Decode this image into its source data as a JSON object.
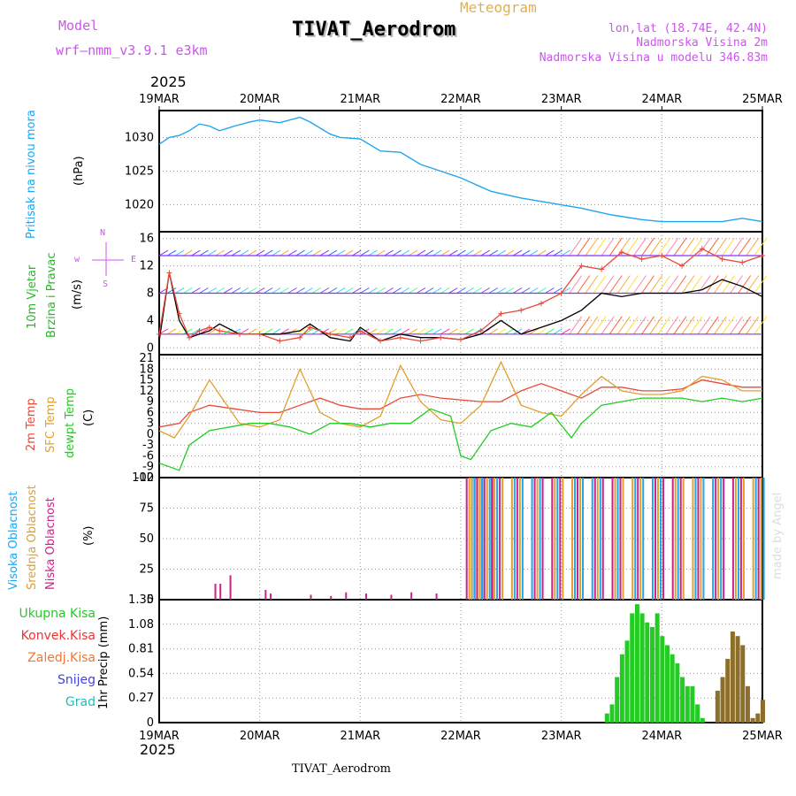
{
  "header": {
    "model_label": "Model",
    "model_value": "wrf—nmm_v3.9.1  e3km",
    "title": "TIVAT_Aerodrom",
    "subtitle": "Meteogram",
    "lonlat": "lon,lat (18.74E, 42.4N)",
    "elev": "Nadmorska Visina 2m",
    "model_elev": "Nadmorska Visina u modelu 346.83m",
    "year_top": "2025",
    "year_bottom": "2025",
    "footer": "TIVAT_Aerodrom",
    "credit": "made by Angel"
  },
  "colors": {
    "pressure": "#1ea6ee",
    "wind_speed_label": "#22bb22",
    "wind_dir_label": "#cc55ee",
    "temp2m": "#e84a3a",
    "sfc": "#e0a030",
    "dew": "#22cc22",
    "high_cloud": "#1ea6ee",
    "mid_cloud": "#e0a030",
    "low_cloud": "#cc2288",
    "total_precip": "#22cc22",
    "conv_precip": "#ee3333",
    "snow_precip": "#e0a030",
    "snow": "#4444dd",
    "grad": "#22bbbb"
  },
  "chart_data": [
    {
      "type": "line",
      "panel": "pressure",
      "x_ticks": [
        "19MAR",
        "20MAR",
        "21MAR",
        "22MAR",
        "23MAR",
        "24MAR",
        "25MAR"
      ],
      "ylabel_color": "Pritisak na nivou mora",
      "ylabel_units": "(hPa)",
      "ylim": [
        1016,
        1034
      ],
      "y_ticks": [
        1020,
        1025,
        1030
      ],
      "series": [
        {
          "name": "Pressure",
          "x": [
            0,
            0.1,
            0.2,
            0.3,
            0.4,
            0.5,
            0.6,
            0.75,
            0.9,
            1.0,
            1.2,
            1.4,
            1.5,
            1.7,
            1.8,
            2.0,
            2.2,
            2.4,
            2.6,
            2.8,
            3.0,
            3.3,
            3.6,
            4.0,
            4.2,
            4.5,
            4.8,
            5.0,
            5.3,
            5.6,
            5.8,
            6.0
          ],
          "values": [
            1029,
            1030,
            1030.3,
            1031,
            1032,
            1031.7,
            1031,
            1031.7,
            1032.3,
            1032.6,
            1032.2,
            1033,
            1032.3,
            1030.5,
            1030,
            1029.8,
            1028,
            1027.8,
            1026,
            1025,
            1024,
            1022,
            1021,
            1020,
            1019.5,
            1018.5,
            1017.8,
            1017.5,
            1017.5,
            1017.5,
            1018,
            1017.5
          ]
        }
      ]
    },
    {
      "type": "line",
      "panel": "wind",
      "ylabel_color": "10m Vjetar",
      "ylabel_color2": "Brzina i Pravac",
      "ylabel_units": "(m/s)",
      "dir_labels": [
        "N",
        "w",
        "E",
        "S"
      ],
      "ylim": [
        -1,
        17
      ],
      "y_ticks": [
        0,
        4,
        8,
        12,
        16
      ],
      "barb_rows": [
        2,
        8,
        13.5
      ],
      "series": [
        {
          "name": "Wind speed",
          "x": [
            0,
            0.1,
            0.2,
            0.3,
            0.4,
            0.5,
            0.6,
            0.8,
            1.0,
            1.2,
            1.4,
            1.5,
            1.7,
            1.9,
            2.0,
            2.2,
            2.4,
            2.6,
            2.8,
            3.0,
            3.2,
            3.4,
            3.6,
            3.8,
            4.0,
            4.2,
            4.4,
            4.6,
            4.8,
            5.0,
            5.2,
            5.4,
            5.6,
            5.8,
            6.0
          ],
          "values": [
            1,
            11,
            4,
            1.5,
            2,
            2.5,
            3.5,
            2,
            2,
            2,
            2.5,
            3.5,
            1.5,
            1,
            3,
            1,
            2,
            1.5,
            1.5,
            1.2,
            2,
            4,
            2,
            3,
            4,
            5.5,
            8,
            7.5,
            8,
            8,
            8,
            8.5,
            10,
            9,
            7.5
          ]
        },
        {
          "name": "Wind gust",
          "x": [
            0,
            0.1,
            0.2,
            0.3,
            0.4,
            0.5,
            0.6,
            0.8,
            1.0,
            1.2,
            1.4,
            1.5,
            1.7,
            1.9,
            2.0,
            2.2,
            2.4,
            2.6,
            2.8,
            3.0,
            3.2,
            3.4,
            3.6,
            3.8,
            4.0,
            4.2,
            4.4,
            4.6,
            4.8,
            5.0,
            5.2,
            5.4,
            5.6,
            5.8,
            6.0
          ],
          "values": [
            2,
            11,
            5,
            1.5,
            2.5,
            3,
            2.5,
            2,
            2,
            1,
            1.5,
            3,
            2,
            1.5,
            2.5,
            1,
            1.5,
            1,
            1.5,
            1.2,
            2.5,
            5,
            5.5,
            6.5,
            8,
            12,
            11.5,
            14,
            13,
            13.5,
            12,
            14.5,
            13,
            12.5,
            13.5
          ]
        }
      ]
    },
    {
      "type": "line",
      "panel": "temperature",
      "ylabel_2m": "2m Temp",
      "ylabel_sfc": "SFC Temp",
      "ylabel_dew": "dewpt Temp",
      "ylabel_units": "(C)",
      "ylim": [
        -12,
        22
      ],
      "y_ticks": [
        -12,
        -9,
        -6,
        -3,
        0,
        3,
        6,
        9,
        12,
        15,
        18,
        21
      ],
      "series": [
        {
          "name": "2m Temp",
          "x": [
            0,
            0.2,
            0.3,
            0.5,
            0.75,
            1.0,
            1.2,
            1.4,
            1.6,
            1.8,
            2.0,
            2.2,
            2.4,
            2.6,
            2.8,
            3.0,
            3.2,
            3.4,
            3.6,
            3.8,
            4.0,
            4.2,
            4.4,
            4.6,
            4.8,
            5.0,
            5.2,
            5.4,
            5.6,
            5.8,
            6.0
          ],
          "values": [
            2,
            3,
            6,
            8,
            7,
            6,
            6,
            8,
            10,
            8,
            7,
            7,
            10,
            11,
            10,
            9.5,
            9,
            9,
            12,
            14,
            12,
            10,
            13,
            13,
            12,
            12,
            12.5,
            15,
            14,
            13,
            13
          ]
        },
        {
          "name": "SFC Temp",
          "x": [
            0,
            0.15,
            0.3,
            0.5,
            0.8,
            1.0,
            1.2,
            1.4,
            1.6,
            1.8,
            2.0,
            2.2,
            2.4,
            2.6,
            2.8,
            3.0,
            3.2,
            3.4,
            3.6,
            3.8,
            4.0,
            4.2,
            4.4,
            4.6,
            4.8,
            5.0,
            5.2,
            5.4,
            5.6,
            5.8,
            6.0
          ],
          "values": [
            1,
            -1,
            5,
            15,
            3,
            2,
            4,
            18,
            6,
            3,
            2,
            5,
            19,
            9,
            4,
            3,
            8,
            20,
            8,
            6,
            5,
            11,
            16,
            12,
            11,
            11,
            12,
            16,
            15,
            12,
            12
          ]
        },
        {
          "name": "dewpt Temp",
          "x": [
            0,
            0.1,
            0.2,
            0.3,
            0.5,
            0.7,
            0.9,
            1.1,
            1.3,
            1.5,
            1.7,
            1.9,
            2.1,
            2.3,
            2.5,
            2.7,
            2.9,
            3.0,
            3.1,
            3.3,
            3.5,
            3.7,
            3.9,
            4.1,
            4.2,
            4.4,
            4.6,
            4.8,
            5.0,
            5.2,
            5.4,
            5.6,
            5.8,
            6.0
          ],
          "values": [
            -8,
            -9,
            -10,
            -3,
            1,
            2,
            3,
            3,
            2,
            0,
            3,
            3,
            2,
            3,
            3,
            7,
            5,
            -6,
            -7,
            1,
            3,
            2,
            6,
            -1,
            3,
            8,
            9,
            10,
            10,
            10,
            9,
            10,
            9,
            10
          ]
        }
      ]
    },
    {
      "type": "bar",
      "panel": "clouds",
      "ylabel_high": "Visoka Oblacnost",
      "ylabel_mid": "Srednja Oblacnost",
      "ylabel_low": "Niska Oblacnost",
      "ylabel_units": "(%)",
      "ylim": [
        0,
        100
      ],
      "y_ticks": [
        0,
        25,
        50,
        75,
        100
      ],
      "note": "mostly clear until 22MAR; broken/overcast afterwards",
      "series": [
        {
          "name": "Low cloud",
          "x": [
            0.55,
            0.6,
            0.7,
            1.05,
            1.1,
            1.5,
            1.7,
            1.85,
            2.05,
            2.3,
            2.5,
            2.75,
            3.05,
            3.1,
            3.2,
            3.3,
            3.5,
            3.7,
            3.9,
            4.1,
            4.3,
            4.5,
            4.7,
            4.9,
            5.1,
            5.3,
            5.5,
            5.7,
            5.9
          ],
          "values": [
            13,
            13,
            20,
            8,
            5,
            4,
            3,
            6,
            5,
            4,
            6,
            5,
            100,
            100,
            100,
            100,
            100,
            100,
            100,
            100,
            100,
            100,
            100,
            100,
            100,
            100,
            100,
            100,
            100
          ]
        }
      ]
    },
    {
      "type": "bar",
      "panel": "precipitation",
      "ylabel_total": "Ukupna Kisa",
      "ylabel_conv": "Konvek.Kisa",
      "ylabel_snow_acc": "Zaledj.Kisa",
      "ylabel_snow": "Snijeg",
      "ylabel_grad": "Grad",
      "ylabel_units": "1hr Precip (mm)",
      "ylim": [
        0,
        1.35
      ],
      "y_ticks": [
        0,
        0.27,
        0.54,
        0.81,
        1.08,
        1.35
      ],
      "series": [
        {
          "name": "Total",
          "x": [
            4.45,
            4.5,
            4.55,
            4.6,
            4.65,
            4.7,
            4.75,
            4.8,
            4.85,
            4.9,
            4.95,
            5.0,
            5.05,
            5.1,
            5.15,
            5.2,
            5.25,
            5.3,
            5.35,
            5.4,
            5.55,
            5.6,
            5.65,
            5.7,
            5.75,
            5.8,
            5.85,
            5.9,
            5.95,
            6.0
          ],
          "values": [
            0.1,
            0.2,
            0.5,
            0.75,
            0.9,
            1.2,
            1.3,
            1.2,
            1.1,
            1.05,
            1.2,
            0.95,
            0.85,
            0.75,
            0.65,
            0.5,
            0.4,
            0.4,
            0.2,
            0.05,
            0.35,
            0.5,
            0.7,
            1.0,
            0.95,
            0.85,
            0.4,
            0.05,
            0.1,
            0.25
          ]
        }
      ]
    }
  ]
}
